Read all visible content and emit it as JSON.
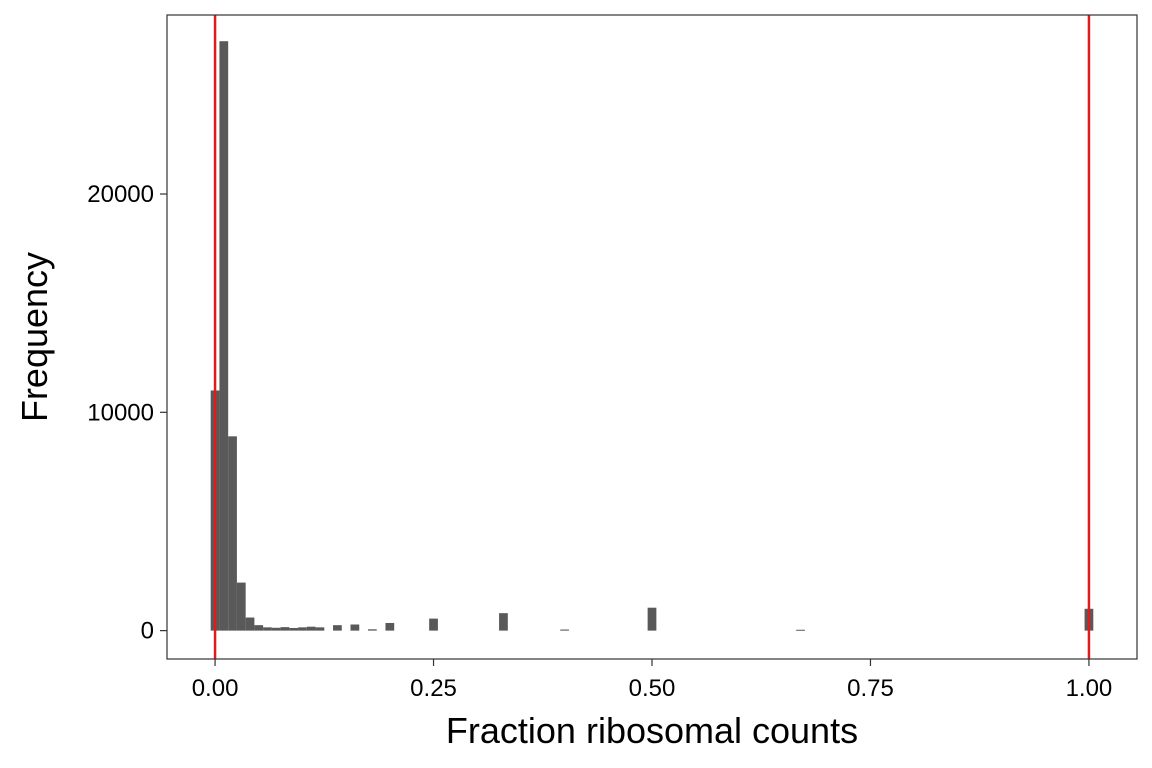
{
  "chart_data": {
    "type": "bar",
    "title": "",
    "xlabel": "Fraction ribosomal counts",
    "ylabel": "Frequency",
    "xlim": [
      -0.055,
      1.055
    ],
    "ylim": [
      -1300,
      28200
    ],
    "x_ticks": [
      {
        "value": 0.0,
        "label": "0.00"
      },
      {
        "value": 0.25,
        "label": "0.25"
      },
      {
        "value": 0.5,
        "label": "0.50"
      },
      {
        "value": 0.75,
        "label": "0.75"
      },
      {
        "value": 1.0,
        "label": "1.00"
      }
    ],
    "y_ticks": [
      {
        "value": 0,
        "label": "0"
      },
      {
        "value": 10000,
        "label": "10000"
      },
      {
        "value": 20000,
        "label": "20000"
      }
    ],
    "bin_width": 0.01,
    "bins": [
      {
        "x": 0.0,
        "count": 11000
      },
      {
        "x": 0.01,
        "count": 27000
      },
      {
        "x": 0.02,
        "count": 8900
      },
      {
        "x": 0.03,
        "count": 2200
      },
      {
        "x": 0.04,
        "count": 600
      },
      {
        "x": 0.05,
        "count": 250
      },
      {
        "x": 0.06,
        "count": 150
      },
      {
        "x": 0.07,
        "count": 130
      },
      {
        "x": 0.08,
        "count": 160
      },
      {
        "x": 0.09,
        "count": 120
      },
      {
        "x": 0.1,
        "count": 150
      },
      {
        "x": 0.11,
        "count": 180
      },
      {
        "x": 0.12,
        "count": 150
      },
      {
        "x": 0.14,
        "count": 250
      },
      {
        "x": 0.16,
        "count": 280
      },
      {
        "x": 0.18,
        "count": 60
      },
      {
        "x": 0.2,
        "count": 350
      },
      {
        "x": 0.25,
        "count": 550
      },
      {
        "x": 0.33,
        "count": 800
      },
      {
        "x": 0.4,
        "count": 50
      },
      {
        "x": 0.5,
        "count": 1050
      },
      {
        "x": 0.67,
        "count": 40
      },
      {
        "x": 1.0,
        "count": 1000
      }
    ],
    "vlines": [
      {
        "x": 0.0,
        "color": "#e31a1c"
      },
      {
        "x": 1.0,
        "color": "#e31a1c"
      }
    ],
    "bar_color": "#595959",
    "grid": false,
    "legend": "none"
  }
}
